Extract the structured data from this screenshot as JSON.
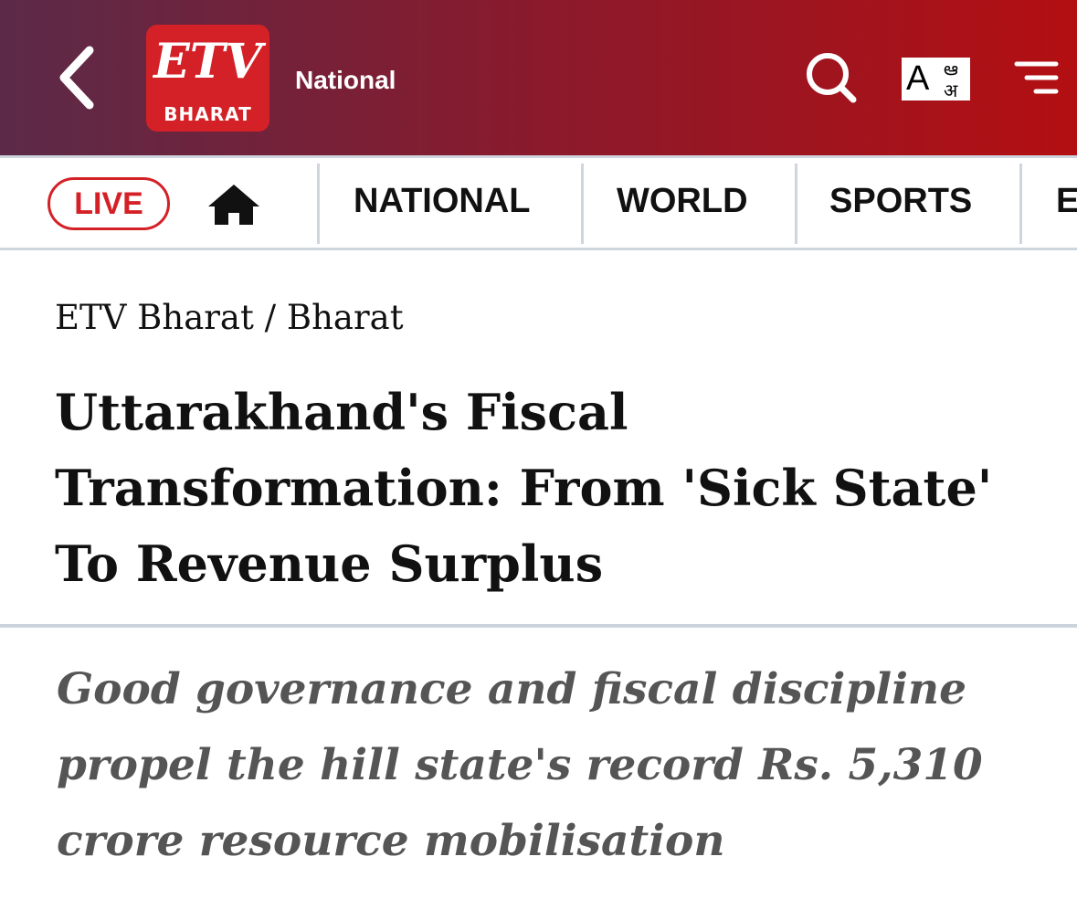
{
  "header": {
    "logo_text": "BHARAT",
    "section": "National",
    "lang_icon": [
      "A",
      "ఆ",
      "अ"
    ]
  },
  "nav": {
    "live": "LIVE",
    "items": [
      "NATIONAL",
      "WORLD",
      "SPORTS",
      "E"
    ]
  },
  "breadcrumb": {
    "items": [
      "ETV Bharat",
      "Bharat"
    ],
    "separator": "/"
  },
  "article": {
    "title": "Uttarakhand's Fiscal Transformation: From 'Sick State' To Revenue Surplus",
    "subtitle": "Good governance and fiscal discipline propel the hill state's record Rs. 5,310 crore resource mobilisation"
  }
}
